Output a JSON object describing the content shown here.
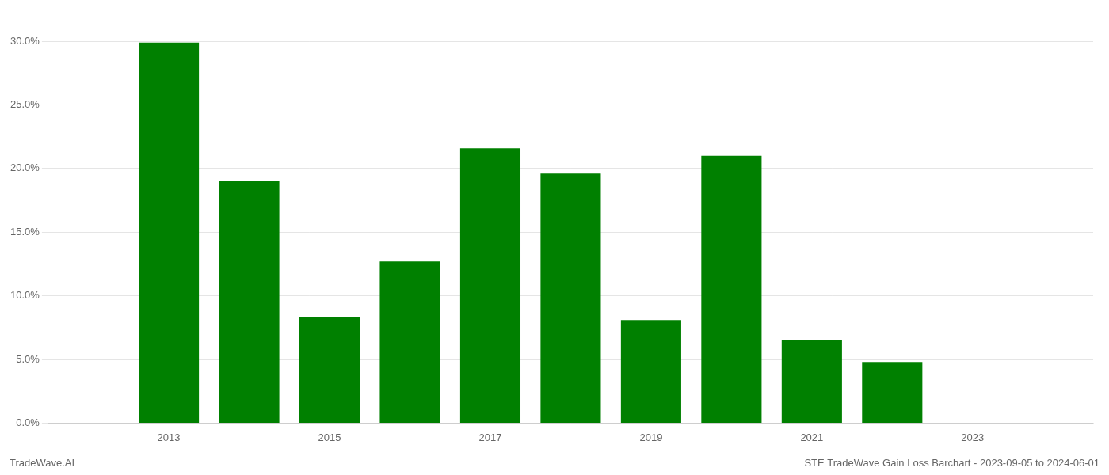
{
  "chart_data": {
    "type": "bar",
    "title": "STE TradeWave Gain Loss Barchart - 2023-09-05 to 2024-06-01",
    "annotations": [
      "TradeWave.AI"
    ],
    "x": [
      2013,
      2014,
      2015,
      2016,
      2017,
      2018,
      2019,
      2020,
      2021,
      2022,
      2023
    ],
    "values": [
      0.299,
      0.19,
      0.083,
      0.127,
      0.216,
      0.196,
      0.081,
      0.21,
      0.065,
      0.048,
      0.0
    ],
    "color": "#008000",
    "xlim": [
      2011.5,
      2024.5
    ],
    "xticks": [
      2013,
      2015,
      2017,
      2019,
      2021,
      2023
    ],
    "ylim": [
      0.0,
      0.32
    ],
    "yticks": [
      {
        "value": 0.0,
        "label": "0.0%"
      },
      {
        "value": 0.05,
        "label": "5.0%"
      },
      {
        "value": 0.1,
        "label": "10.0%"
      },
      {
        "value": 0.15,
        "label": "15.0%"
      },
      {
        "value": 0.2,
        "label": "20.0%"
      },
      {
        "value": 0.25,
        "label": "25.0%"
      },
      {
        "value": 0.3,
        "label": "30.0%"
      }
    ],
    "grid": "y"
  }
}
